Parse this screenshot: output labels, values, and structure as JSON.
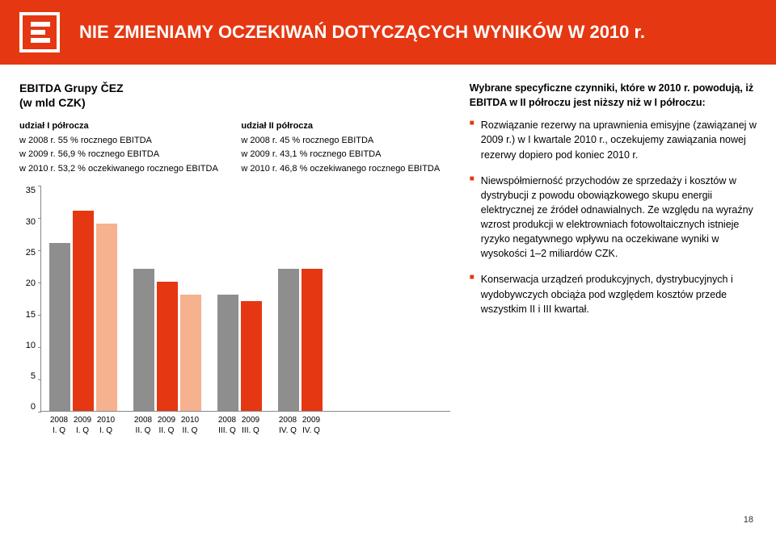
{
  "slide": {
    "title": "NIE ZMIENIAMY OCZEKIWAŃ DOTYCZĄCYCH WYNIKÓW W 2010 r.",
    "page_number": "18"
  },
  "chart": {
    "header_line1": "EBITDA Grupy ČEZ",
    "header_line2": "(w mld CZK)",
    "legend_left": {
      "title": "udział I półrocza",
      "line2008": "w 2008 r. 55 % rocznego EBITDA",
      "line2009": "w 2009 r. 56,9 % rocznego EBITDA",
      "line2010": "w 2010 r. 53,2 % oczekiwanego rocznego EBITDA"
    },
    "legend_right": {
      "title": "udział II półrocza",
      "line2008": "w 2008 r. 45 % rocznego EBITDA",
      "line2009": "w 2009 r. 43,1 % rocznego EBITDA",
      "line2010": "w 2010 r. 46,8 % oczekiwanego rocznego EBITDA"
    },
    "y_axis": {
      "min": 0,
      "max": 35,
      "step": 5,
      "ticks": [
        "35",
        "30",
        "25",
        "20",
        "15",
        "10",
        "5",
        "0"
      ]
    },
    "colors": {
      "year_2008": "#8e8e8e",
      "year_2009": "#e53712",
      "year_2010": "#f6b18e",
      "axis": "#888888",
      "text": "#000000",
      "background": "#ffffff"
    },
    "groups": [
      {
        "bars": [
          {
            "label_top": "2008",
            "label_bot": "I. Q",
            "value": 26,
            "color": "#8e8e8e"
          },
          {
            "label_top": "2009",
            "label_bot": "I. Q",
            "value": 31,
            "color": "#e53712"
          },
          {
            "label_top": "2010",
            "label_bot": "I. Q",
            "value": 29,
            "color": "#f6b18e"
          }
        ]
      },
      {
        "bars": [
          {
            "label_top": "2008",
            "label_bot": "II. Q",
            "value": 22,
            "color": "#8e8e8e"
          },
          {
            "label_top": "2009",
            "label_bot": "II. Q",
            "value": 20,
            "color": "#e53712"
          },
          {
            "label_top": "2010",
            "label_bot": "II. Q",
            "value": 18,
            "color": "#f6b18e"
          }
        ]
      },
      {
        "bars": [
          {
            "label_top": "2008",
            "label_bot": "III. Q",
            "value": 18,
            "color": "#8e8e8e"
          },
          {
            "label_top": "2009",
            "label_bot": "III. Q",
            "value": 17,
            "color": "#e53712"
          }
        ]
      },
      {
        "bars": [
          {
            "label_top": "2008",
            "label_bot": "IV. Q",
            "value": 22,
            "color": "#8e8e8e"
          },
          {
            "label_top": "2009",
            "label_bot": "IV. Q",
            "value": 22,
            "color": "#e53712"
          }
        ]
      }
    ]
  },
  "factors": {
    "heading": "Wybrane specyficzne czynniki, które w 2010 r. powodują, iż EBITDA w II półroczu jest niższy niż w I półroczu:",
    "bullets": [
      "Rozwiązanie rezerwy na uprawnienia emisyjne (zawiązanej w 2009 r.) w I kwartale 2010 r., oczekujemy zawiązania nowej rezerwy dopiero pod koniec 2010 r.",
      "Niewspółmierność przychodów ze sprzedaży i kosztów w dystrybucji z powodu obowiązkowego skupu energii elektrycznej ze źródeł odnawialnych. Ze względu na wyraźny wzrost produkcji w elektrowniach fotowoltaicznych istnieje ryzyko negatywnego wpływu na oczekiwane wyniki w wysokości 1–2 miliardów CZK.",
      "Konserwacja urządzeń produkcyjnych, dystrybucyjnych i wydobywczych obciąża pod względem kosztów przede wszystkim II i III kwartał."
    ]
  }
}
